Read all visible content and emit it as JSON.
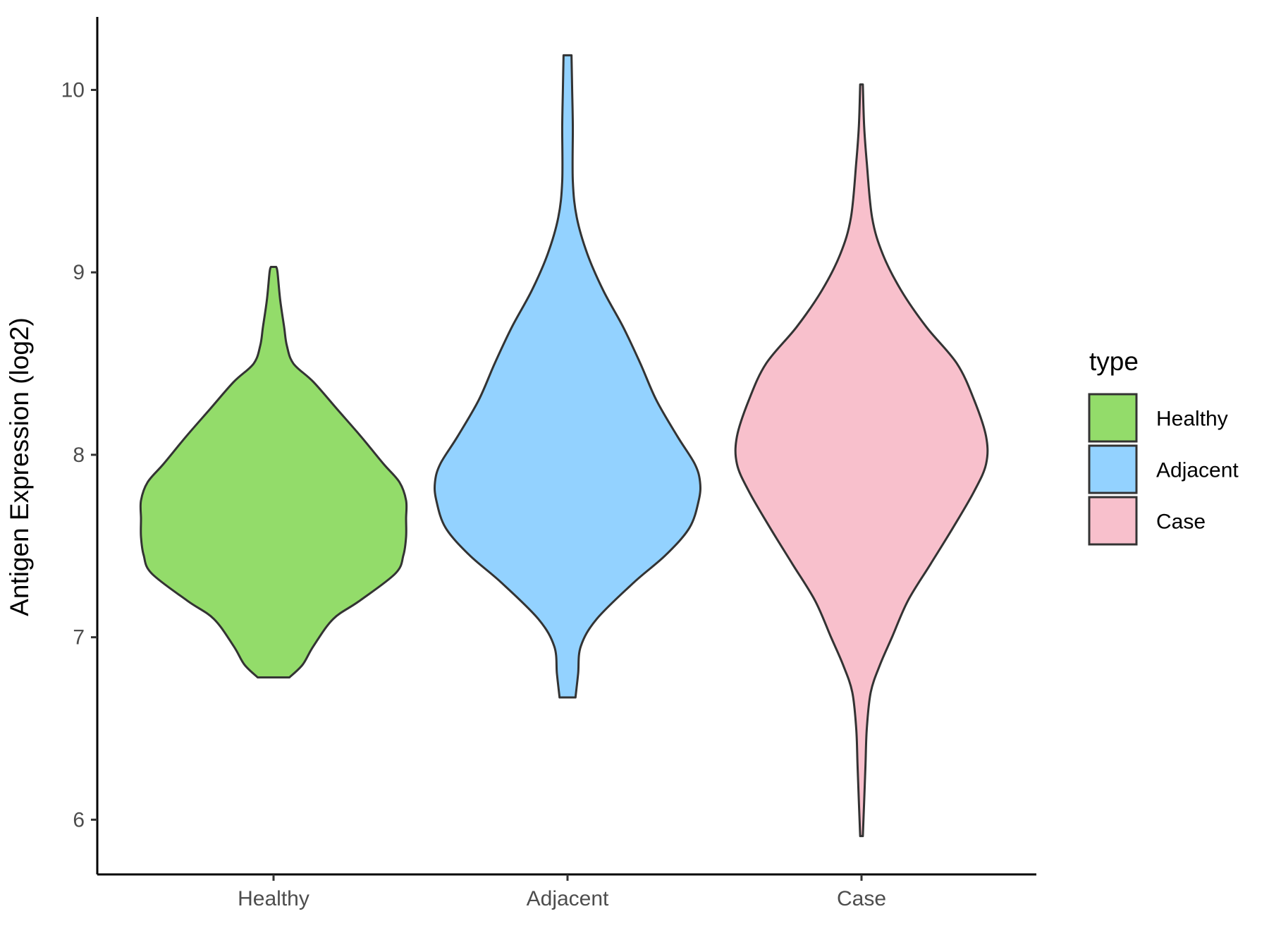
{
  "chart_data": {
    "type": "violin",
    "ylabel": "Antigen Expression (log2)",
    "xlabel": "",
    "categories": [
      "Healthy",
      "Adjacent",
      "Case"
    ],
    "y_ticks": [
      6,
      7,
      8,
      9,
      10
    ],
    "ylim": [
      5.7,
      10.4
    ],
    "grid": false,
    "legend": {
      "title": "type",
      "position": "right",
      "entries": [
        "Healthy",
        "Adjacent",
        "Case"
      ]
    },
    "colors": {
      "Healthy": "#93DC6A",
      "Adjacent": "#93D2FF",
      "Case": "#F8C0CC"
    },
    "series": [
      {
        "category": "Healthy",
        "min": 6.78,
        "max": 9.03,
        "density_profile": [
          [
            6.78,
            0.12
          ],
          [
            6.85,
            0.22
          ],
          [
            6.95,
            0.3
          ],
          [
            7.1,
            0.45
          ],
          [
            7.2,
            0.65
          ],
          [
            7.35,
            0.92
          ],
          [
            7.45,
            0.98
          ],
          [
            7.55,
            1.0
          ],
          [
            7.65,
            1.0
          ],
          [
            7.75,
            1.0
          ],
          [
            7.85,
            0.95
          ],
          [
            7.95,
            0.83
          ],
          [
            8.1,
            0.66
          ],
          [
            8.25,
            0.48
          ],
          [
            8.4,
            0.3
          ],
          [
            8.5,
            0.15
          ],
          [
            8.6,
            0.1
          ],
          [
            8.7,
            0.08
          ],
          [
            8.85,
            0.05
          ],
          [
            9.0,
            0.03
          ],
          [
            9.03,
            0.02
          ]
        ]
      },
      {
        "category": "Adjacent",
        "min": 6.67,
        "max": 10.19,
        "density_profile": [
          [
            6.67,
            0.06
          ],
          [
            6.8,
            0.08
          ],
          [
            6.95,
            0.1
          ],
          [
            7.1,
            0.22
          ],
          [
            7.3,
            0.5
          ],
          [
            7.45,
            0.74
          ],
          [
            7.6,
            0.92
          ],
          [
            7.75,
            0.99
          ],
          [
            7.85,
            1.0
          ],
          [
            7.95,
            0.96
          ],
          [
            8.1,
            0.83
          ],
          [
            8.3,
            0.67
          ],
          [
            8.5,
            0.55
          ],
          [
            8.7,
            0.42
          ],
          [
            8.9,
            0.27
          ],
          [
            9.1,
            0.15
          ],
          [
            9.3,
            0.07
          ],
          [
            9.5,
            0.04
          ],
          [
            9.8,
            0.04
          ],
          [
            10.0,
            0.035
          ],
          [
            10.19,
            0.03
          ]
        ]
      },
      {
        "category": "Case",
        "min": 5.91,
        "max": 10.03,
        "density_profile": [
          [
            5.91,
            0.01
          ],
          [
            6.1,
            0.02
          ],
          [
            6.3,
            0.03
          ],
          [
            6.5,
            0.04
          ],
          [
            6.7,
            0.07
          ],
          [
            6.85,
            0.14
          ],
          [
            7.0,
            0.23
          ],
          [
            7.2,
            0.35
          ],
          [
            7.4,
            0.52
          ],
          [
            7.6,
            0.69
          ],
          [
            7.8,
            0.85
          ],
          [
            7.95,
            0.94
          ],
          [
            8.1,
            0.94
          ],
          [
            8.3,
            0.85
          ],
          [
            8.5,
            0.72
          ],
          [
            8.7,
            0.49
          ],
          [
            8.9,
            0.3
          ],
          [
            9.1,
            0.16
          ],
          [
            9.3,
            0.08
          ],
          [
            9.6,
            0.04
          ],
          [
            9.8,
            0.02
          ],
          [
            10.03,
            0.01
          ]
        ]
      }
    ]
  }
}
